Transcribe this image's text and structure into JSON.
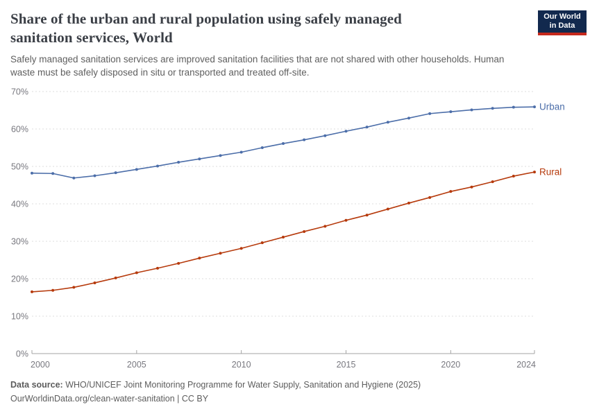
{
  "header": {
    "title": "Share of the urban and rural population using safely managed sanitation services, World",
    "subtitle": "Safely managed sanitation services are improved sanitation facilities that are not shared with other households. Human waste must be safely disposed in situ or transported and treated off-site.",
    "logo": {
      "line1": "Our World",
      "line2": "in Data",
      "bg_color": "#12294e",
      "accent_color": "#c5281c"
    }
  },
  "chart_data": {
    "type": "line",
    "x": [
      2000,
      2001,
      2002,
      2003,
      2004,
      2005,
      2006,
      2007,
      2008,
      2009,
      2010,
      2011,
      2012,
      2013,
      2014,
      2015,
      2016,
      2017,
      2018,
      2019,
      2020,
      2021,
      2022,
      2023,
      2024
    ],
    "series": [
      {
        "name": "Urban",
        "color": "#4C6EA9",
        "values": [
          48.2,
          48.1,
          46.9,
          47.5,
          48.3,
          49.2,
          50.1,
          51.1,
          52.0,
          52.9,
          53.8,
          55.0,
          56.1,
          57.1,
          58.2,
          59.4,
          60.5,
          61.8,
          62.9,
          64.1,
          64.6,
          65.1,
          65.5,
          65.8,
          65.9
        ]
      },
      {
        "name": "Rural",
        "color": "#B63A0C",
        "values": [
          16.5,
          16.9,
          17.7,
          18.9,
          20.2,
          21.6,
          22.8,
          24.1,
          25.5,
          26.8,
          28.1,
          29.6,
          31.1,
          32.6,
          34.0,
          35.6,
          37.0,
          38.6,
          40.2,
          41.7,
          43.3,
          44.5,
          45.9,
          47.4,
          48.5
        ]
      }
    ],
    "title": "Share of the urban and rural population using safely managed sanitation services, World",
    "xlabel": "",
    "ylabel": "",
    "ylim": [
      0,
      70
    ],
    "yticks": [
      0,
      10,
      20,
      30,
      40,
      50,
      60,
      70
    ],
    "ytick_suffix": "%",
    "xticks": [
      2000,
      2005,
      2010,
      2015,
      2020,
      2024
    ],
    "grid": "horizontal-dashed",
    "legend_position": "line-end-labels"
  },
  "footer": {
    "source_label": "Data source:",
    "source_text": " WHO/UNICEF Joint Monitoring Programme for Water Supply, Sanitation and Hygiene (2025)",
    "citation": "OurWorldinData.org/clean-water-sanitation | CC BY"
  }
}
